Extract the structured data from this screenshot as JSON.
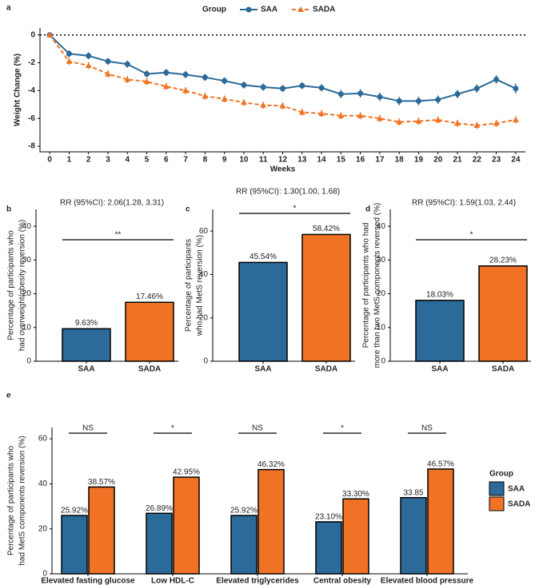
{
  "chart_data": [
    {
      "type": "line",
      "panel": "a",
      "xlabel": "Weeks",
      "ylabel": "Weight Change (%)",
      "legend_title": "Group",
      "legend": "top",
      "x": [
        0,
        1,
        2,
        3,
        4,
        5,
        6,
        7,
        8,
        9,
        10,
        11,
        12,
        13,
        14,
        15,
        16,
        17,
        18,
        19,
        20,
        21,
        22,
        23,
        24
      ],
      "xlim": [
        -0.5,
        24.5
      ],
      "xticks": [
        0,
        1,
        2,
        3,
        4,
        5,
        6,
        7,
        8,
        9,
        10,
        11,
        12,
        13,
        14,
        15,
        16,
        17,
        18,
        19,
        20,
        21,
        22,
        23,
        24
      ],
      "ylim": [
        -8.4,
        0.5
      ],
      "yticks": [
        0,
        -2,
        -4,
        -6,
        -8
      ],
      "reference_line": 0,
      "series": [
        {
          "name": "SAA",
          "color": "#2b6a99",
          "line_style": "solid",
          "marker": "circle",
          "values": [
            0,
            -1.35,
            -1.5,
            -1.9,
            -2.1,
            -2.8,
            -2.7,
            -2.85,
            -3.05,
            -3.3,
            -3.6,
            -3.75,
            -3.85,
            -3.65,
            -3.8,
            -4.25,
            -4.2,
            -4.45,
            -4.75,
            -4.75,
            -4.65,
            -4.25,
            -3.85,
            -3.2,
            -3.85
          ],
          "errors": [
            0.15,
            0.25,
            0.25,
            0.25,
            0.25,
            0.25,
            0.25,
            0.25,
            0.25,
            0.25,
            0.25,
            0.25,
            0.25,
            0.25,
            0.25,
            0.3,
            0.3,
            0.3,
            0.3,
            0.3,
            0.3,
            0.3,
            0.3,
            0.3,
            0.35
          ]
        },
        {
          "name": "SADA",
          "color": "#f07325",
          "line_style": "dashed",
          "marker": "triangle",
          "values": [
            0,
            -1.9,
            -2.2,
            -2.8,
            -3.2,
            -3.35,
            -3.7,
            -4.0,
            -4.4,
            -4.6,
            -4.85,
            -5.05,
            -5.1,
            -5.55,
            -5.65,
            -5.8,
            -5.8,
            -6.0,
            -6.25,
            -6.2,
            -6.1,
            -6.35,
            -6.5,
            -6.35,
            -6.1
          ],
          "errors": [
            0.15,
            0.25,
            0.25,
            0.25,
            0.25,
            0.25,
            0.25,
            0.25,
            0.25,
            0.25,
            0.25,
            0.25,
            0.25,
            0.25,
            0.25,
            0.25,
            0.25,
            0.25,
            0.25,
            0.25,
            0.25,
            0.25,
            0.25,
            0.25,
            0.25
          ]
        }
      ]
    },
    {
      "type": "bar",
      "panel": "b",
      "ylabel": [
        "Percentage of participants who",
        "had overweight/obesity reversion (%)"
      ],
      "categories": [
        "SAA",
        "SADA"
      ],
      "values": [
        9.63,
        17.46
      ],
      "value_labels": [
        "9.63%",
        "17.46%"
      ],
      "colors": [
        "#2b6a99",
        "#f07325"
      ],
      "ylim": [
        0,
        45
      ],
      "yticks": [
        0,
        10,
        20,
        30,
        40
      ],
      "annotation": "RR (95%CI): 2.06(1.28, 3.31)",
      "significance": "**"
    },
    {
      "type": "bar",
      "panel": "c",
      "ylabel": [
        "Percentage of participants",
        "who had MetS reversion (%)"
      ],
      "categories": [
        "SAA",
        "SADA"
      ],
      "values": [
        45.54,
        58.42
      ],
      "value_labels": [
        "45.54%",
        "58.42%"
      ],
      "colors": [
        "#2b6a99",
        "#f07325"
      ],
      "ylim": [
        0,
        70
      ],
      "yticks": [
        0,
        20,
        40,
        60
      ],
      "annotation": "RR (95%CI): 1.30(1.00, 1.68)",
      "significance": "*"
    },
    {
      "type": "bar",
      "panel": "d",
      "ylabel": [
        "Percentage of participants who had",
        "more than two MetS components reversed (%)"
      ],
      "categories": [
        "SAA",
        "SADA"
      ],
      "values": [
        18.03,
        28.23
      ],
      "value_labels": [
        "18.03%",
        "28.23%"
      ],
      "colors": [
        "#2b6a99",
        "#f07325"
      ],
      "ylim": [
        0,
        45
      ],
      "yticks": [
        0,
        10,
        20,
        30,
        40
      ],
      "annotation": "RR (95%CI): 1.59(1.03, 2.44)",
      "significance": "*"
    },
    {
      "type": "grouped_bar",
      "panel": "e",
      "ylabel": [
        "Percentage of participants who",
        "had MetS components reversion (%)"
      ],
      "legend_title": "Group",
      "legend": "right",
      "categories": [
        "Elevated fasting glucose",
        "Low HDL-C",
        "Elevated triglycerides",
        "Central obesity",
        "Elevated blood pressure"
      ],
      "ylim": [
        0,
        65
      ],
      "yticks": [
        0,
        20,
        40,
        60
      ],
      "significance": [
        "NS",
        "*",
        "NS",
        "*",
        "NS"
      ],
      "series": [
        {
          "name": "SAA",
          "color": "#2b6a99",
          "values": [
            25.92,
            26.89,
            25.92,
            23.1,
            33.85
          ],
          "value_labels": [
            "25.92%",
            "26.89%",
            "25.92%",
            "23.10%",
            "33.85"
          ]
        },
        {
          "name": "SADA",
          "color": "#f07325",
          "values": [
            38.57,
            42.95,
            46.32,
            33.3,
            46.57
          ],
          "value_labels": [
            "38.57%",
            "42.95%",
            "46.32%",
            "33.30%",
            "46.57%"
          ]
        }
      ]
    }
  ]
}
